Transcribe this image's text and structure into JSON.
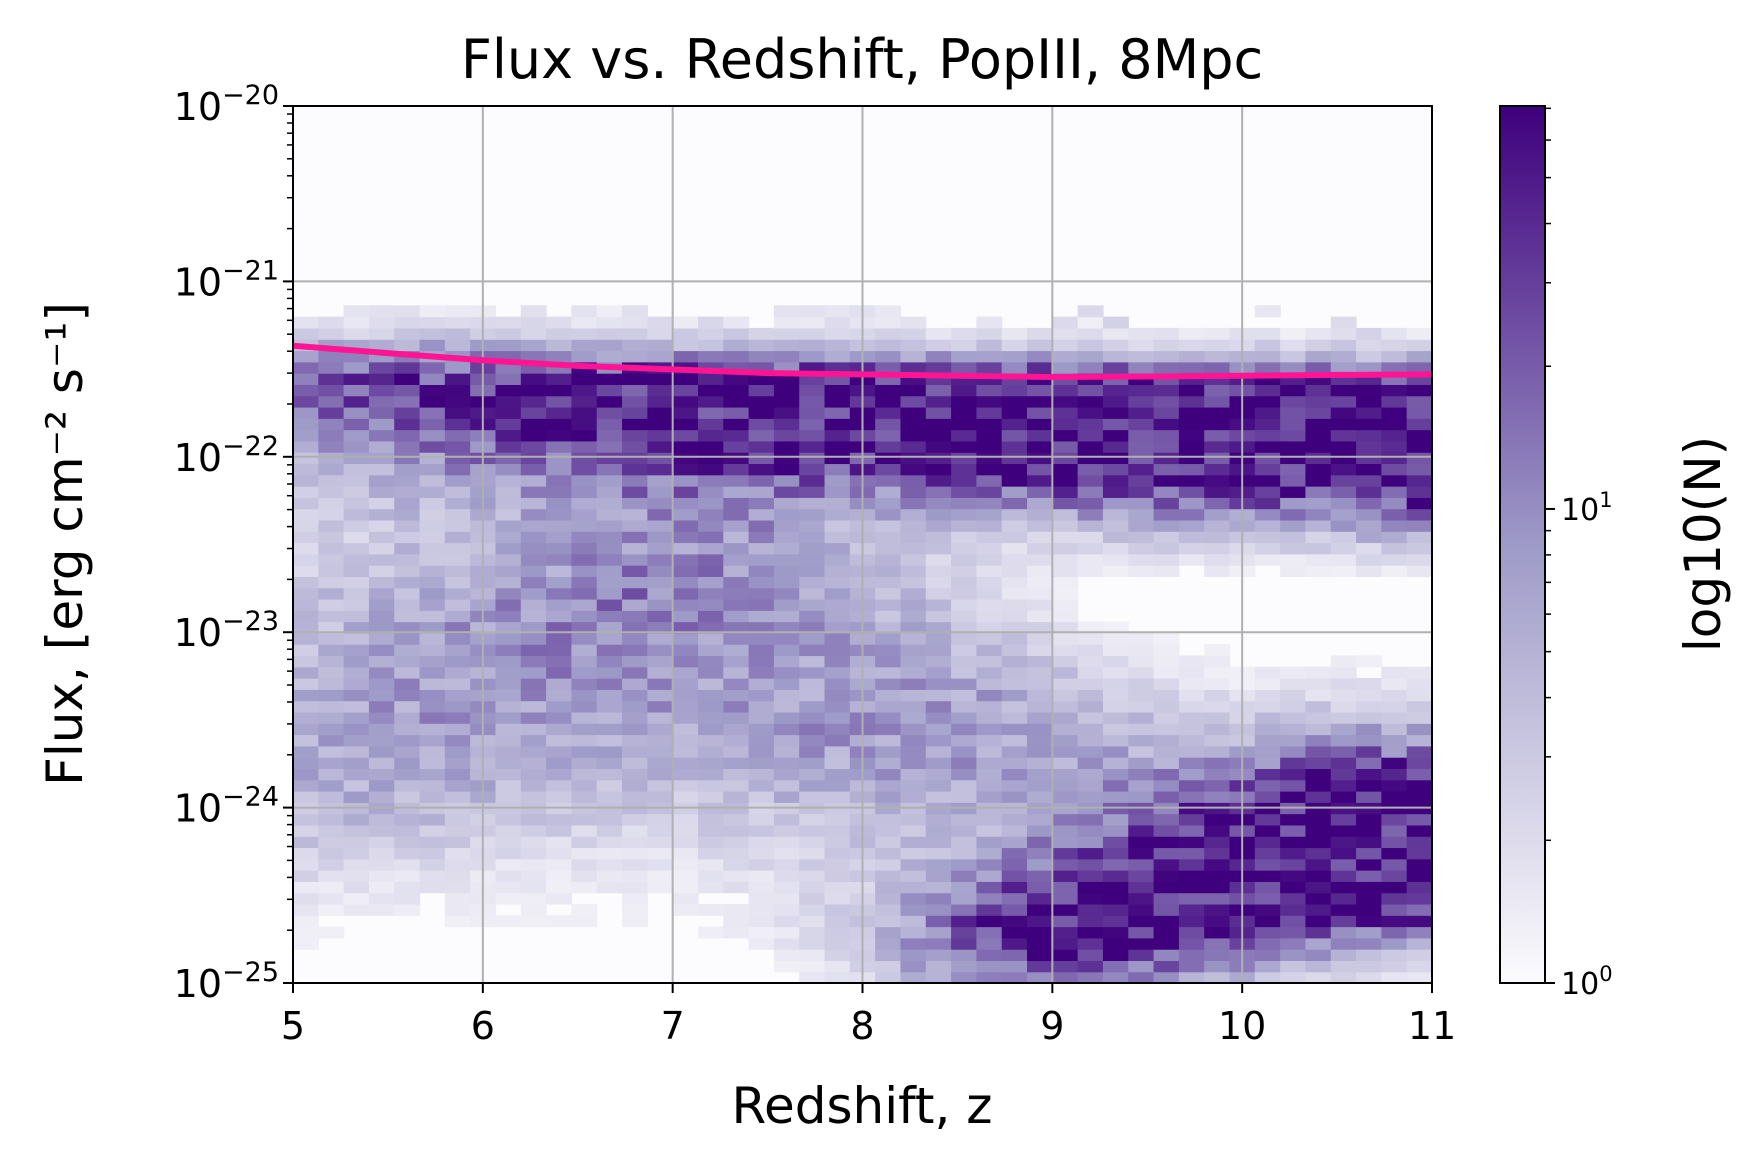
{
  "chart_data": {
    "type": "heatmap",
    "title": "Flux vs. Redshift, PopIII, 8Mpc",
    "xlabel": "Redshift, z",
    "ylabel": "Flux, [erg cm⁻² s⁻¹]",
    "colorbar_label": "log10(N)",
    "xlim": [
      5,
      11
    ],
    "ylim": [
      1e-25,
      1e-20
    ],
    "y_scale": "log",
    "grid": true,
    "x_ticks": [
      "5",
      "6",
      "7",
      "8",
      "9",
      "10",
      "11"
    ],
    "y_ticks": [
      {
        "base": "10",
        "exp": "−25"
      },
      {
        "base": "10",
        "exp": "−24"
      },
      {
        "base": "10",
        "exp": "−23"
      },
      {
        "base": "10",
        "exp": "−22"
      },
      {
        "base": "10",
        "exp": "−21"
      },
      {
        "base": "10",
        "exp": "−20"
      }
    ],
    "colorbar_ticks": [
      {
        "base": "10",
        "exp": "0"
      },
      {
        "base": "10",
        "exp": "1"
      }
    ],
    "colormap": {
      "low": "#fcfbfd",
      "mid": "#9e9ac8",
      "high": "#3f007d"
    },
    "curve_color": "#ff1493",
    "flux_limit_curve": {
      "x": [
        5.0,
        5.5,
        6.0,
        6.5,
        7.0,
        7.5,
        8.0,
        8.5,
        9.0,
        9.5,
        10.0,
        10.5,
        11.0
      ],
      "y": [
        4.3e-22,
        3.9e-22,
        3.55e-22,
        3.3e-22,
        3.15e-22,
        3e-22,
        2.95e-22,
        2.9e-22,
        2.85e-22,
        2.87e-22,
        2.9e-22,
        2.93e-22,
        2.95e-22
      ]
    },
    "heatmap_bands": [
      {
        "z": [
          5.0,
          5.5,
          6.0,
          6.5,
          7.0,
          7.5,
          8.0,
          8.5,
          9.0,
          9.5,
          10.0,
          10.5,
          11.0
        ],
        "log_flux": [
          -21.55,
          -21.58,
          -21.6,
          -21.63,
          -21.65,
          -21.68,
          -21.7,
          -21.72,
          -21.72,
          -21.72,
          -21.72,
          -21.72,
          -21.72
        ],
        "intensity": [
          0.55,
          0.65,
          0.72,
          0.8,
          0.85,
          0.9,
          0.92,
          0.9,
          0.88,
          0.85,
          0.82,
          0.82,
          0.82
        ],
        "width": 0.22
      },
      {
        "z": [
          5.0,
          5.5,
          6.0,
          6.5,
          7.0,
          7.5,
          8.0,
          8.5,
          9.0,
          9.5,
          10.0,
          10.5,
          11.0
        ],
        "log_flux": [
          -21.95,
          -21.95,
          -21.95,
          -21.95,
          -21.95,
          -21.95,
          -21.92,
          -21.95,
          -22.0,
          -22.05,
          -22.05,
          -22.05,
          -22.1
        ],
        "intensity": [
          0.3,
          0.4,
          0.45,
          0.5,
          0.55,
          0.55,
          0.6,
          0.8,
          0.85,
          0.85,
          0.88,
          0.9,
          0.95
        ],
        "width": 0.3
      },
      {
        "z": [
          5.0,
          5.5,
          6.0,
          6.5,
          7.0,
          7.5,
          8.0,
          8.5,
          9.0,
          9.5,
          10.0,
          10.5,
          11.0
        ],
        "log_flux": [
          -22.9,
          -22.9,
          -22.9,
          -22.85,
          -22.8,
          -22.8,
          -22.85,
          -23.0,
          -23.3,
          -23.6,
          -23.6,
          -23.6,
          -23.6
        ],
        "intensity": [
          0.3,
          0.4,
          0.5,
          0.58,
          0.62,
          0.55,
          0.4,
          0.3,
          0.22,
          0.15,
          0.12,
          0.1,
          0.08
        ],
        "width": 0.45
      },
      {
        "z": [
          5.0,
          5.5,
          6.0,
          6.5,
          7.0,
          7.5,
          8.0,
          8.5,
          9.0,
          9.5,
          10.0,
          10.5,
          11.0
        ],
        "log_flux": [
          -23.7,
          -23.7,
          -23.7,
          -23.7,
          -23.7,
          -23.7,
          -23.65,
          -23.7,
          -23.75,
          -23.8,
          -24.0,
          -24.0,
          -24.0
        ],
        "intensity": [
          0.35,
          0.4,
          0.38,
          0.35,
          0.35,
          0.4,
          0.45,
          0.42,
          0.3,
          0.25,
          0.2,
          0.25,
          0.3
        ],
        "width": 0.4
      },
      {
        "z": [
          5.0,
          5.5,
          6.0,
          6.5,
          7.0,
          7.5,
          8.0,
          8.5,
          9.0,
          9.5,
          10.0,
          10.5,
          11.0
        ],
        "log_flux": [
          -24.2,
          -24.25,
          -24.3,
          -24.4,
          -24.45,
          -24.5,
          -24.55,
          -24.6,
          -24.55,
          -24.4,
          -24.2,
          -24.1,
          -24.1
        ],
        "intensity": [
          0.15,
          0.12,
          0.1,
          0.08,
          0.08,
          0.12,
          0.25,
          0.4,
          0.6,
          0.75,
          0.82,
          0.85,
          0.85
        ],
        "width": 0.35
      },
      {
        "z": [
          5.0,
          5.5,
          6.0,
          6.5,
          7.0,
          7.5,
          8.0,
          8.5,
          9.0,
          9.5,
          10.0,
          10.5,
          11.0
        ],
        "log_flux": [
          -24.8,
          -24.85,
          -24.9,
          -24.9,
          -24.95,
          -24.95,
          -24.9,
          -24.8,
          -24.75,
          -24.7,
          -24.65,
          -24.6,
          -24.55
        ],
        "intensity": [
          0.05,
          0.05,
          0.04,
          0.04,
          0.03,
          0.04,
          0.1,
          0.4,
          0.55,
          0.65,
          0.7,
          0.6,
          0.5
        ],
        "width": 0.25
      }
    ]
  }
}
